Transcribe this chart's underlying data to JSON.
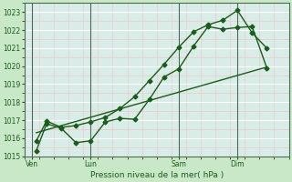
{
  "bg_color": "#c8e8c8",
  "plot_bg_color": "#d8ede8",
  "grid_major_color": "#ffffff",
  "grid_minor_color": "#f0c8c8",
  "line_color": "#1a5c1a",
  "vline_color": "#556655",
  "xlabel": "Pression niveau de la mer( hPa )",
  "ylim": [
    1015,
    1023.5
  ],
  "yticks": [
    1015,
    1016,
    1017,
    1018,
    1019,
    1020,
    1021,
    1022,
    1023
  ],
  "day_labels": [
    "Ven",
    "Lun",
    "Sam",
    "Dim"
  ],
  "day_positions": [
    0.5,
    4.5,
    10.5,
    14.5
  ],
  "vline_positions": [
    0.5,
    4.5,
    10.5,
    14.5
  ],
  "xlim": [
    0,
    18
  ],
  "series1_x": [
    0.8,
    1.5,
    2.5,
    3.5,
    4.5,
    5.5,
    6.5,
    7.5,
    8.5,
    9.5,
    10.5,
    11.5,
    12.5,
    13.5,
    14.5,
    15.5,
    16.5
  ],
  "series1_y": [
    1015.3,
    1016.8,
    1016.55,
    1015.75,
    1015.85,
    1016.9,
    1017.1,
    1017.05,
    1018.15,
    1019.4,
    1019.85,
    1021.1,
    1022.2,
    1022.05,
    1022.15,
    1022.2,
    1019.9
  ],
  "series2_x": [
    0.8,
    1.5,
    2.5,
    3.5,
    4.5,
    5.5,
    6.5,
    7.5,
    8.5,
    9.5,
    10.5,
    11.5,
    12.5,
    13.5,
    14.5,
    15.5,
    16.5
  ],
  "series2_y": [
    1015.85,
    1016.95,
    1016.6,
    1016.7,
    1016.9,
    1017.15,
    1017.65,
    1018.3,
    1019.2,
    1020.1,
    1021.05,
    1021.9,
    1022.3,
    1022.55,
    1023.1,
    1021.85,
    1021.0
  ],
  "series3_x": [
    0.8,
    16.5
  ],
  "series3_y": [
    1016.3,
    1019.95
  ],
  "marker_size": 2.5,
  "linewidth": 1.0,
  "tick_fontsize": 5.5,
  "xlabel_fontsize": 6.5
}
